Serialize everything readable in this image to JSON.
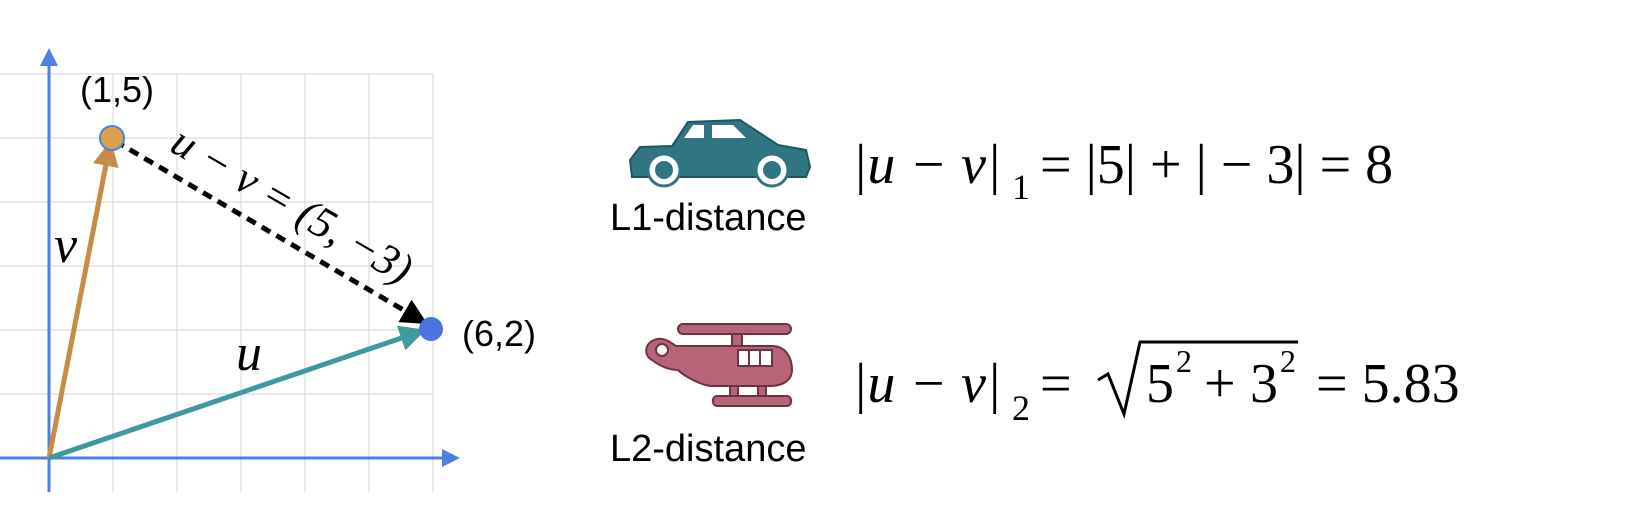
{
  "graph": {
    "point_v_label": "(1,5)",
    "point_u_label": "(6,2)",
    "vector_v_label": "v",
    "vector_u_label": "u",
    "difference_label": "u − v = (5, −3)",
    "colors": {
      "axis": "#4a80e0",
      "grid": "#dcdcdc",
      "vector_v": "#c98c47",
      "vector_u": "#3c9aa0",
      "difference": "#000000",
      "point_v": "#e0a04a",
      "point_u": "#4a74e0"
    }
  },
  "l1": {
    "icon": "car-icon",
    "icon_color": "#2f7682",
    "label": "L1-distance",
    "formula_lhs": "|u − v|",
    "subscript": "1",
    "formula_rhs": "= |5| + | − 3| = 8"
  },
  "l2": {
    "icon": "helicopter-icon",
    "icon_color": "#b86478",
    "label": "L2-distance",
    "formula_lhs": "|u − v|",
    "subscript": "2",
    "formula_eq": "=",
    "radicand_base1": "5",
    "radicand_exp1": "2",
    "radicand_plus": "+",
    "radicand_base2": "3",
    "radicand_exp2": "2",
    "formula_result": "= 5.83"
  }
}
